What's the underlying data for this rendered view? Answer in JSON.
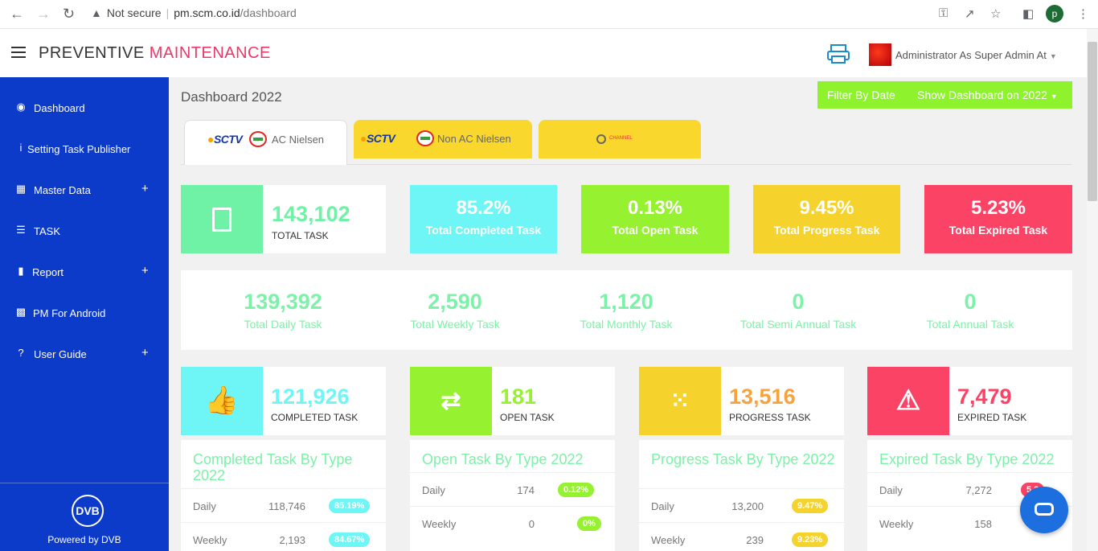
{
  "browser": {
    "security": "Not secure",
    "url_host": "pm.scm.co.id",
    "url_path": "/dashboard",
    "profile_initial": "p"
  },
  "header": {
    "brand_1": "PREVENTIVE",
    "brand_2": "MAINTENANCE",
    "user": "Administrator As Super Admin At"
  },
  "sidebar": {
    "items": [
      {
        "label": "Dashboard"
      },
      {
        "label": "Setting Task Publisher"
      },
      {
        "label": "Master Data"
      },
      {
        "label": "TASK"
      },
      {
        "label": "Report"
      },
      {
        "label": "PM For Android"
      },
      {
        "label": "User Guide"
      }
    ],
    "footer": "Powered by DVB",
    "logo": "DVB"
  },
  "main": {
    "title": "Dashboard 2022",
    "filter_label": "Filter By Date",
    "filter_value": "Show Dashboard on 2022",
    "tabs": [
      {
        "label": "AC Nielsen",
        "logo": "SCTV"
      },
      {
        "label": "Non AC Nielsen",
        "logo": "SCTV"
      },
      {
        "label": "",
        "logo": "CHANNEL"
      }
    ],
    "total": {
      "value": "143,102",
      "label": "TOTAL TASK"
    },
    "pct": [
      {
        "value": "85.2%",
        "label": "Total Completed Task",
        "color": "#6ef6f6"
      },
      {
        "value": "0.13%",
        "label": "Total Open Task",
        "color": "#96f230"
      },
      {
        "value": "9.45%",
        "label": "Total Progress Task",
        "color": "#f6d22c"
      },
      {
        "value": "5.23%",
        "label": "Total Expired Task",
        "color": "#fb4366"
      }
    ],
    "freq": [
      {
        "value": "139,392",
        "label": "Total Daily Task"
      },
      {
        "value": "2,590",
        "label": "Total Weekly Task"
      },
      {
        "value": "1,120",
        "label": "Total Monthly Task"
      },
      {
        "value": "0",
        "label": "Total Semi Annual Task"
      },
      {
        "value": "0",
        "label": "Total Annual Task"
      }
    ],
    "status": [
      {
        "value": "121,926",
        "label": "COMPLETED TASK",
        "color": "#6ef6f6",
        "icon": "thumbs-up-icon"
      },
      {
        "value": "181",
        "label": "OPEN TASK",
        "color": "#96f230",
        "icon": "arrows-icon"
      },
      {
        "value": "13,516",
        "label": "PROGRESS TASK",
        "color": "#f6d22c",
        "icon": "spinner-icon"
      },
      {
        "value": "7,479",
        "label": "EXPIRED TASK",
        "color": "#fb4366",
        "icon": "warning-icon"
      }
    ],
    "types": [
      {
        "title": "Completed Task By Type 2022",
        "rows": [
          {
            "name": "Daily",
            "count": "118,746",
            "pct": "85.19%"
          },
          {
            "name": "Weekly",
            "count": "2,193",
            "pct": "84.67%"
          }
        ]
      },
      {
        "title": "Open Task By Type 2022",
        "rows": [
          {
            "name": "Daily",
            "count": "174",
            "pct": "0.12%"
          },
          {
            "name": "Weekly",
            "count": "0",
            "pct": "0%"
          }
        ]
      },
      {
        "title": "Progress Task By Type 2022",
        "rows": [
          {
            "name": "Daily",
            "count": "13,200",
            "pct": "9.47%"
          },
          {
            "name": "Weekly",
            "count": "239",
            "pct": "9.23%"
          }
        ]
      },
      {
        "title": "Expired Task By Type 2022",
        "rows": [
          {
            "name": "Daily",
            "count": "7,272",
            "pct": "5.2"
          },
          {
            "name": "Weekly",
            "count": "158",
            "pct": ""
          }
        ]
      }
    ]
  }
}
